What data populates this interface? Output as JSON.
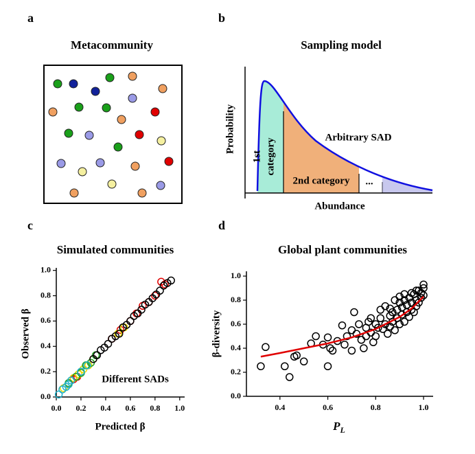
{
  "panels": [
    {
      "label": "a",
      "title": "Metacommunity"
    },
    {
      "label": "b",
      "title": "Sampling model",
      "y_label": "Probability",
      "x_label": "Abundance",
      "curve_label": "Arbitrary SAD",
      "category_1": [
        "1st",
        "category"
      ],
      "category_2": "2nd category",
      "ellipsis": "..."
    }
  ],
  "chart_data": [
    {
      "type": "scatter",
      "panel_label": "c",
      "title": "Simulated communities",
      "x_label": "Predicted β",
      "y_label": "Observed β",
      "annotation": "Different SADs",
      "xlim": [
        0,
        1.04
      ],
      "ylim": [
        0,
        1.02
      ],
      "xticks": [
        {
          "value": 0,
          "label": "0.0"
        },
        0.2,
        0.4,
        0.6,
        0.8,
        {
          "value": 1,
          "label": "1.0"
        }
      ],
      "yticks": [
        {
          "value": 0,
          "label": "0.0"
        },
        0.2,
        0.4,
        0.6,
        0.8,
        {
          "value": 1,
          "label": "1.0"
        }
      ],
      "series": [
        {
          "marker": "circle",
          "color": "#e00000",
          "x": [
            0.14,
            0.17,
            0.45,
            0.52,
            0.6,
            0.65,
            0.7,
            0.75,
            0.8,
            0.85,
            0.88
          ],
          "values": [
            0.14,
            0.16,
            0.46,
            0.53,
            0.6,
            0.66,
            0.72,
            0.75,
            0.8,
            0.91,
            0.89
          ]
        },
        {
          "marker": "circle",
          "color": "#e8d800",
          "x": [
            0.06,
            0.1,
            0.14,
            0.18,
            0.22,
            0.26,
            0.3,
            0.5,
            0.55
          ],
          "values": [
            0.07,
            0.1,
            0.15,
            0.18,
            0.22,
            0.25,
            0.3,
            0.5,
            0.55
          ]
        },
        {
          "marker": "circle",
          "color": "#20a020",
          "x": [
            0.1,
            0.16,
            0.2,
            0.24,
            0.28,
            0.32
          ],
          "values": [
            0.11,
            0.16,
            0.19,
            0.25,
            0.27,
            0.33
          ]
        },
        {
          "marker": "circle",
          "color": "#1fb0c8",
          "x": [
            0.02,
            0.05,
            0.08,
            0.1,
            0.12,
            0.2,
            0.25
          ],
          "values": [
            0.02,
            0.06,
            0.08,
            0.1,
            0.13,
            0.2,
            0.25
          ]
        },
        {
          "marker": "circle",
          "color": "#000000",
          "x": [
            0.3,
            0.33,
            0.36,
            0.39,
            0.42,
            0.45,
            0.48,
            0.51,
            0.54,
            0.57,
            0.6,
            0.63,
            0.66,
            0.69,
            0.72,
            0.75,
            0.78,
            0.81,
            0.84,
            0.87,
            0.9,
            0.93
          ],
          "values": [
            0.3,
            0.33,
            0.37,
            0.39,
            0.42,
            0.46,
            0.48,
            0.5,
            0.55,
            0.57,
            0.6,
            0.64,
            0.66,
            0.69,
            0.73,
            0.75,
            0.78,
            0.81,
            0.84,
            0.88,
            0.9,
            0.92
          ]
        }
      ]
    },
    {
      "type": "scatter",
      "panel_label": "d",
      "title": "Global plant communities",
      "x_label": {
        "text": "P",
        "subscript": "L"
      },
      "y_label": "β-diversity",
      "xlim": [
        0.26,
        1.04
      ],
      "ylim": [
        0,
        1.04
      ],
      "xticks": [
        0.4,
        0.6,
        0.8,
        {
          "value": 1,
          "label": "1.0"
        }
      ],
      "yticks": [
        {
          "value": 0,
          "label": "0.0"
        },
        0.2,
        0.4,
        0.6,
        0.8,
        {
          "value": 1,
          "label": "1.0"
        }
      ],
      "series": [
        {
          "marker": "circle",
          "color": "#000000",
          "x": [
            0.32,
            0.34,
            0.42,
            0.44,
            0.46,
            0.47,
            0.5,
            0.53,
            0.55,
            0.58,
            0.6,
            0.6,
            0.61,
            0.62,
            0.64,
            0.66,
            0.67,
            0.7,
            0.7,
            0.71,
            0.72,
            0.74,
            0.75,
            0.76,
            0.77,
            0.78,
            0.79,
            0.8,
            0.8,
            0.81,
            0.82,
            0.83,
            0.84,
            0.84,
            0.85,
            0.86,
            0.86,
            0.87,
            0.87,
            0.88,
            0.88,
            0.89,
            0.89,
            0.9,
            0.9,
            0.91,
            0.91,
            0.92,
            0.92,
            0.93,
            0.93,
            0.94,
            0.94,
            0.95,
            0.95,
            0.96,
            0.96,
            0.97,
            0.97,
            0.98,
            0.98,
            0.99,
            0.99,
            1.0,
            1.0,
            1.0,
            0.97,
            0.95,
            0.92,
            0.9,
            0.86,
            0.82,
            0.78,
            0.76,
            0.73,
            0.68
          ],
          "values": [
            0.25,
            0.41,
            0.25,
            0.16,
            0.33,
            0.34,
            0.29,
            0.44,
            0.5,
            0.43,
            0.25,
            0.49,
            0.4,
            0.38,
            0.46,
            0.59,
            0.43,
            0.55,
            0.38,
            0.7,
            0.52,
            0.47,
            0.4,
            0.5,
            0.62,
            0.53,
            0.45,
            0.6,
            0.5,
            0.57,
            0.65,
            0.56,
            0.75,
            0.6,
            0.52,
            0.67,
            0.58,
            0.7,
            0.62,
            0.8,
            0.55,
            0.72,
            0.65,
            0.6,
            0.78,
            0.68,
            0.74,
            0.62,
            0.8,
            0.7,
            0.76,
            0.66,
            0.82,
            0.72,
            0.78,
            0.7,
            0.85,
            0.75,
            0.8,
            0.78,
            0.88,
            0.82,
            0.86,
            0.84,
            0.9,
            0.93,
            0.88,
            0.86,
            0.85,
            0.83,
            0.73,
            0.72,
            0.65,
            0.57,
            0.6,
            0.5
          ]
        },
        {
          "marker": "line",
          "color": "#e00000",
          "x": [
            0.32,
            0.4,
            0.5,
            0.6,
            0.7,
            0.8,
            0.9,
            0.95,
            1.0
          ],
          "values": [
            0.33,
            0.36,
            0.4,
            0.44,
            0.49,
            0.56,
            0.66,
            0.73,
            0.83
          ]
        }
      ]
    }
  ]
}
